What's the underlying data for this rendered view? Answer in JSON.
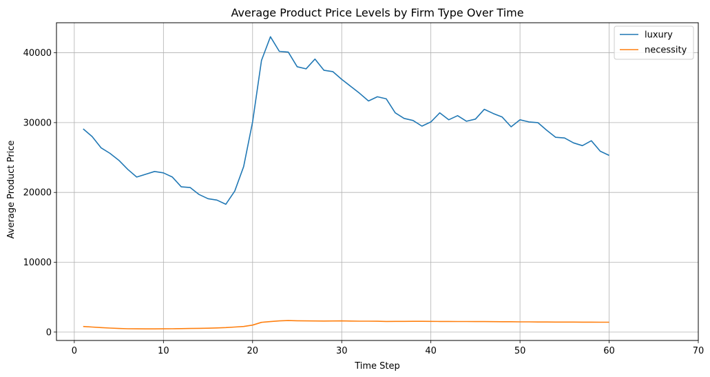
{
  "chart_data": {
    "type": "line",
    "title": "Average Product Price Levels by Firm Type Over Time",
    "xlabel": "Time Step",
    "ylabel": "Average Product Price",
    "xlim": [
      -2,
      70
    ],
    "ylim": [
      -1200,
      44300
    ],
    "xticks": [
      0,
      10,
      20,
      30,
      40,
      50,
      60,
      70
    ],
    "yticks": [
      0,
      10000,
      20000,
      30000,
      40000
    ],
    "grid": true,
    "legend_position": "top-right",
    "x": [
      1,
      2,
      3,
      4,
      5,
      6,
      7,
      8,
      9,
      10,
      11,
      12,
      13,
      14,
      15,
      16,
      17,
      18,
      19,
      20,
      21,
      22,
      23,
      24,
      25,
      26,
      27,
      28,
      29,
      30,
      31,
      32,
      33,
      34,
      35,
      36,
      37,
      38,
      39,
      40,
      41,
      42,
      43,
      44,
      45,
      46,
      47,
      48,
      49,
      50,
      51,
      52,
      53,
      54,
      55,
      56,
      57,
      58,
      59,
      60
    ],
    "series": [
      {
        "name": "luxury",
        "color": "#1f77b4",
        "values": [
          29100,
          28000,
          26400,
          25600,
          24600,
          23300,
          22200,
          22600,
          23000,
          22800,
          22200,
          20800,
          20700,
          19700,
          19100,
          18900,
          18300,
          20200,
          23700,
          30100,
          38900,
          42300,
          40200,
          40100,
          38000,
          37700,
          39100,
          37500,
          37300,
          36200,
          35200,
          34200,
          33100,
          33700,
          33400,
          31400,
          30600,
          30300,
          29500,
          30100,
          31400,
          30400,
          31000,
          30200,
          30500,
          31900,
          31300,
          30800,
          29400,
          30400,
          30100,
          30000,
          28900,
          27900,
          27800,
          27100,
          26700,
          27400,
          25900,
          25300
        ]
      },
      {
        "name": "necessity",
        "color": "#ff7f0e",
        "values": [
          800,
          720,
          650,
          580,
          520,
          480,
          470,
          460,
          460,
          470,
          480,
          500,
          520,
          540,
          560,
          600,
          650,
          720,
          800,
          1000,
          1400,
          1500,
          1600,
          1650,
          1620,
          1600,
          1590,
          1580,
          1590,
          1600,
          1580,
          1560,
          1560,
          1550,
          1520,
          1530,
          1530,
          1540,
          1540,
          1530,
          1520,
          1520,
          1510,
          1510,
          1500,
          1500,
          1490,
          1480,
          1480,
          1460,
          1460,
          1450,
          1450,
          1440,
          1440,
          1440,
          1430,
          1430,
          1420,
          1420
        ]
      }
    ]
  }
}
